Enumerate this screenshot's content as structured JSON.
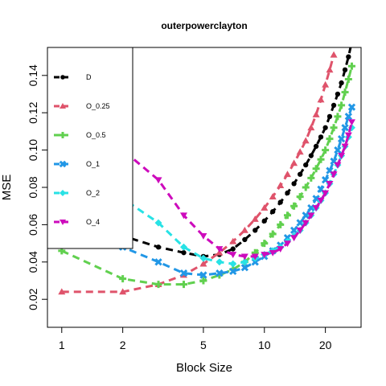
{
  "chart_data": {
    "type": "line",
    "title": "outerpowerclayton",
    "xlabel": "Block Size",
    "ylabel": "MSE",
    "x_scale": "log",
    "xlim": [
      0.85,
      30
    ],
    "ylim": [
      0.005,
      0.155
    ],
    "x_ticks": [
      1,
      2,
      5,
      10,
      20
    ],
    "x_tick_labels": [
      "1",
      "2",
      "5",
      "10",
      "20"
    ],
    "y_ticks": [
      0.02,
      0.04,
      0.06,
      0.08,
      0.1,
      0.12,
      0.14
    ],
    "y_tick_labels": [
      "0.02",
      "0.04",
      "0.06",
      "0.08",
      "0.10",
      "0.12",
      "0.14"
    ],
    "legend_position": "top-left",
    "grid": false,
    "series": [
      {
        "name": "D",
        "color": "#000000",
        "marker": "circle",
        "x": [
          1,
          2,
          3,
          4,
          5,
          6,
          7,
          8,
          9,
          10,
          11,
          12,
          13,
          14,
          15,
          16,
          17,
          18,
          19,
          20,
          21,
          22,
          23,
          24,
          25,
          26,
          27
        ],
        "y": [
          0.078,
          0.054,
          0.048,
          0.045,
          0.043,
          0.044,
          0.047,
          0.052,
          0.057,
          0.062,
          0.067,
          0.072,
          0.077,
          0.082,
          0.087,
          0.092,
          0.097,
          0.102,
          0.107,
          0.112,
          0.118,
          0.124,
          0.13,
          0.136,
          0.143,
          0.15,
          0.158
        ]
      },
      {
        "name": "O_0.25",
        "color": "#df536b",
        "marker": "triangle",
        "x": [
          1,
          2,
          3,
          4,
          5,
          6,
          7,
          8,
          9,
          10,
          11,
          12,
          13,
          14,
          15,
          16,
          17,
          18,
          19,
          20,
          21,
          22
        ],
        "y": [
          0.024,
          0.024,
          0.028,
          0.033,
          0.039,
          0.045,
          0.051,
          0.057,
          0.063,
          0.069,
          0.075,
          0.081,
          0.087,
          0.093,
          0.099,
          0.105,
          0.112,
          0.119,
          0.127,
          0.135,
          0.143,
          0.151
        ]
      },
      {
        "name": "O_0.5",
        "color": "#61d04f",
        "marker": "plus",
        "x": [
          1,
          2,
          3,
          4,
          5,
          6,
          7,
          8,
          9,
          10,
          11,
          12,
          13,
          14,
          15,
          16,
          17,
          18,
          19,
          20,
          21,
          22,
          23,
          24,
          25,
          26,
          27
        ],
        "y": [
          0.046,
          0.031,
          0.028,
          0.028,
          0.03,
          0.033,
          0.036,
          0.04,
          0.045,
          0.05,
          0.055,
          0.06,
          0.065,
          0.07,
          0.075,
          0.08,
          0.085,
          0.09,
          0.095,
          0.1,
          0.106,
          0.112,
          0.118,
          0.124,
          0.131,
          0.138,
          0.145
        ]
      },
      {
        "name": "O_1",
        "color": "#2297e6",
        "marker": "cross",
        "x": [
          1,
          2,
          3,
          4,
          5,
          6,
          7,
          8,
          9,
          10,
          11,
          12,
          13,
          14,
          15,
          16,
          17,
          18,
          19,
          20,
          21,
          22,
          23,
          24,
          25,
          26,
          27
        ],
        "y": [
          0.06,
          0.048,
          0.04,
          0.034,
          0.033,
          0.034,
          0.035,
          0.037,
          0.04,
          0.043,
          0.046,
          0.049,
          0.053,
          0.057,
          0.061,
          0.065,
          0.069,
          0.074,
          0.079,
          0.084,
          0.089,
          0.094,
          0.1,
          0.106,
          0.112,
          0.118,
          0.123
        ]
      },
      {
        "name": "O_2",
        "color": "#28e2e5",
        "marker": "diamond",
        "x": [
          1,
          2,
          3,
          4,
          5,
          6,
          7,
          8,
          9,
          10,
          11,
          12,
          13,
          14,
          15,
          16,
          17,
          18,
          19,
          20,
          21,
          22,
          23,
          24,
          25,
          26,
          27
        ],
        "y": [
          0.088,
          0.074,
          0.061,
          0.048,
          0.042,
          0.04,
          0.039,
          0.04,
          0.042,
          0.044,
          0.046,
          0.048,
          0.051,
          0.054,
          0.057,
          0.061,
          0.065,
          0.069,
          0.073,
          0.077,
          0.082,
          0.087,
          0.092,
          0.097,
          0.102,
          0.107,
          0.112
        ]
      },
      {
        "name": "O_4",
        "color": "#cd0bbc",
        "marker": "triangle-down",
        "x": [
          1,
          2,
          3,
          4,
          5,
          6,
          7,
          8,
          9,
          10,
          11,
          12,
          13,
          14,
          15,
          16,
          17,
          18,
          19,
          20,
          21,
          22,
          23,
          24,
          25,
          26,
          27
        ],
        "y": [
          0.118,
          0.1,
          0.084,
          0.065,
          0.054,
          0.047,
          0.044,
          0.043,
          0.043,
          0.044,
          0.045,
          0.047,
          0.05,
          0.053,
          0.057,
          0.061,
          0.065,
          0.069,
          0.073,
          0.077,
          0.082,
          0.087,
          0.092,
          0.097,
          0.102,
          0.108,
          0.115
        ]
      }
    ]
  }
}
